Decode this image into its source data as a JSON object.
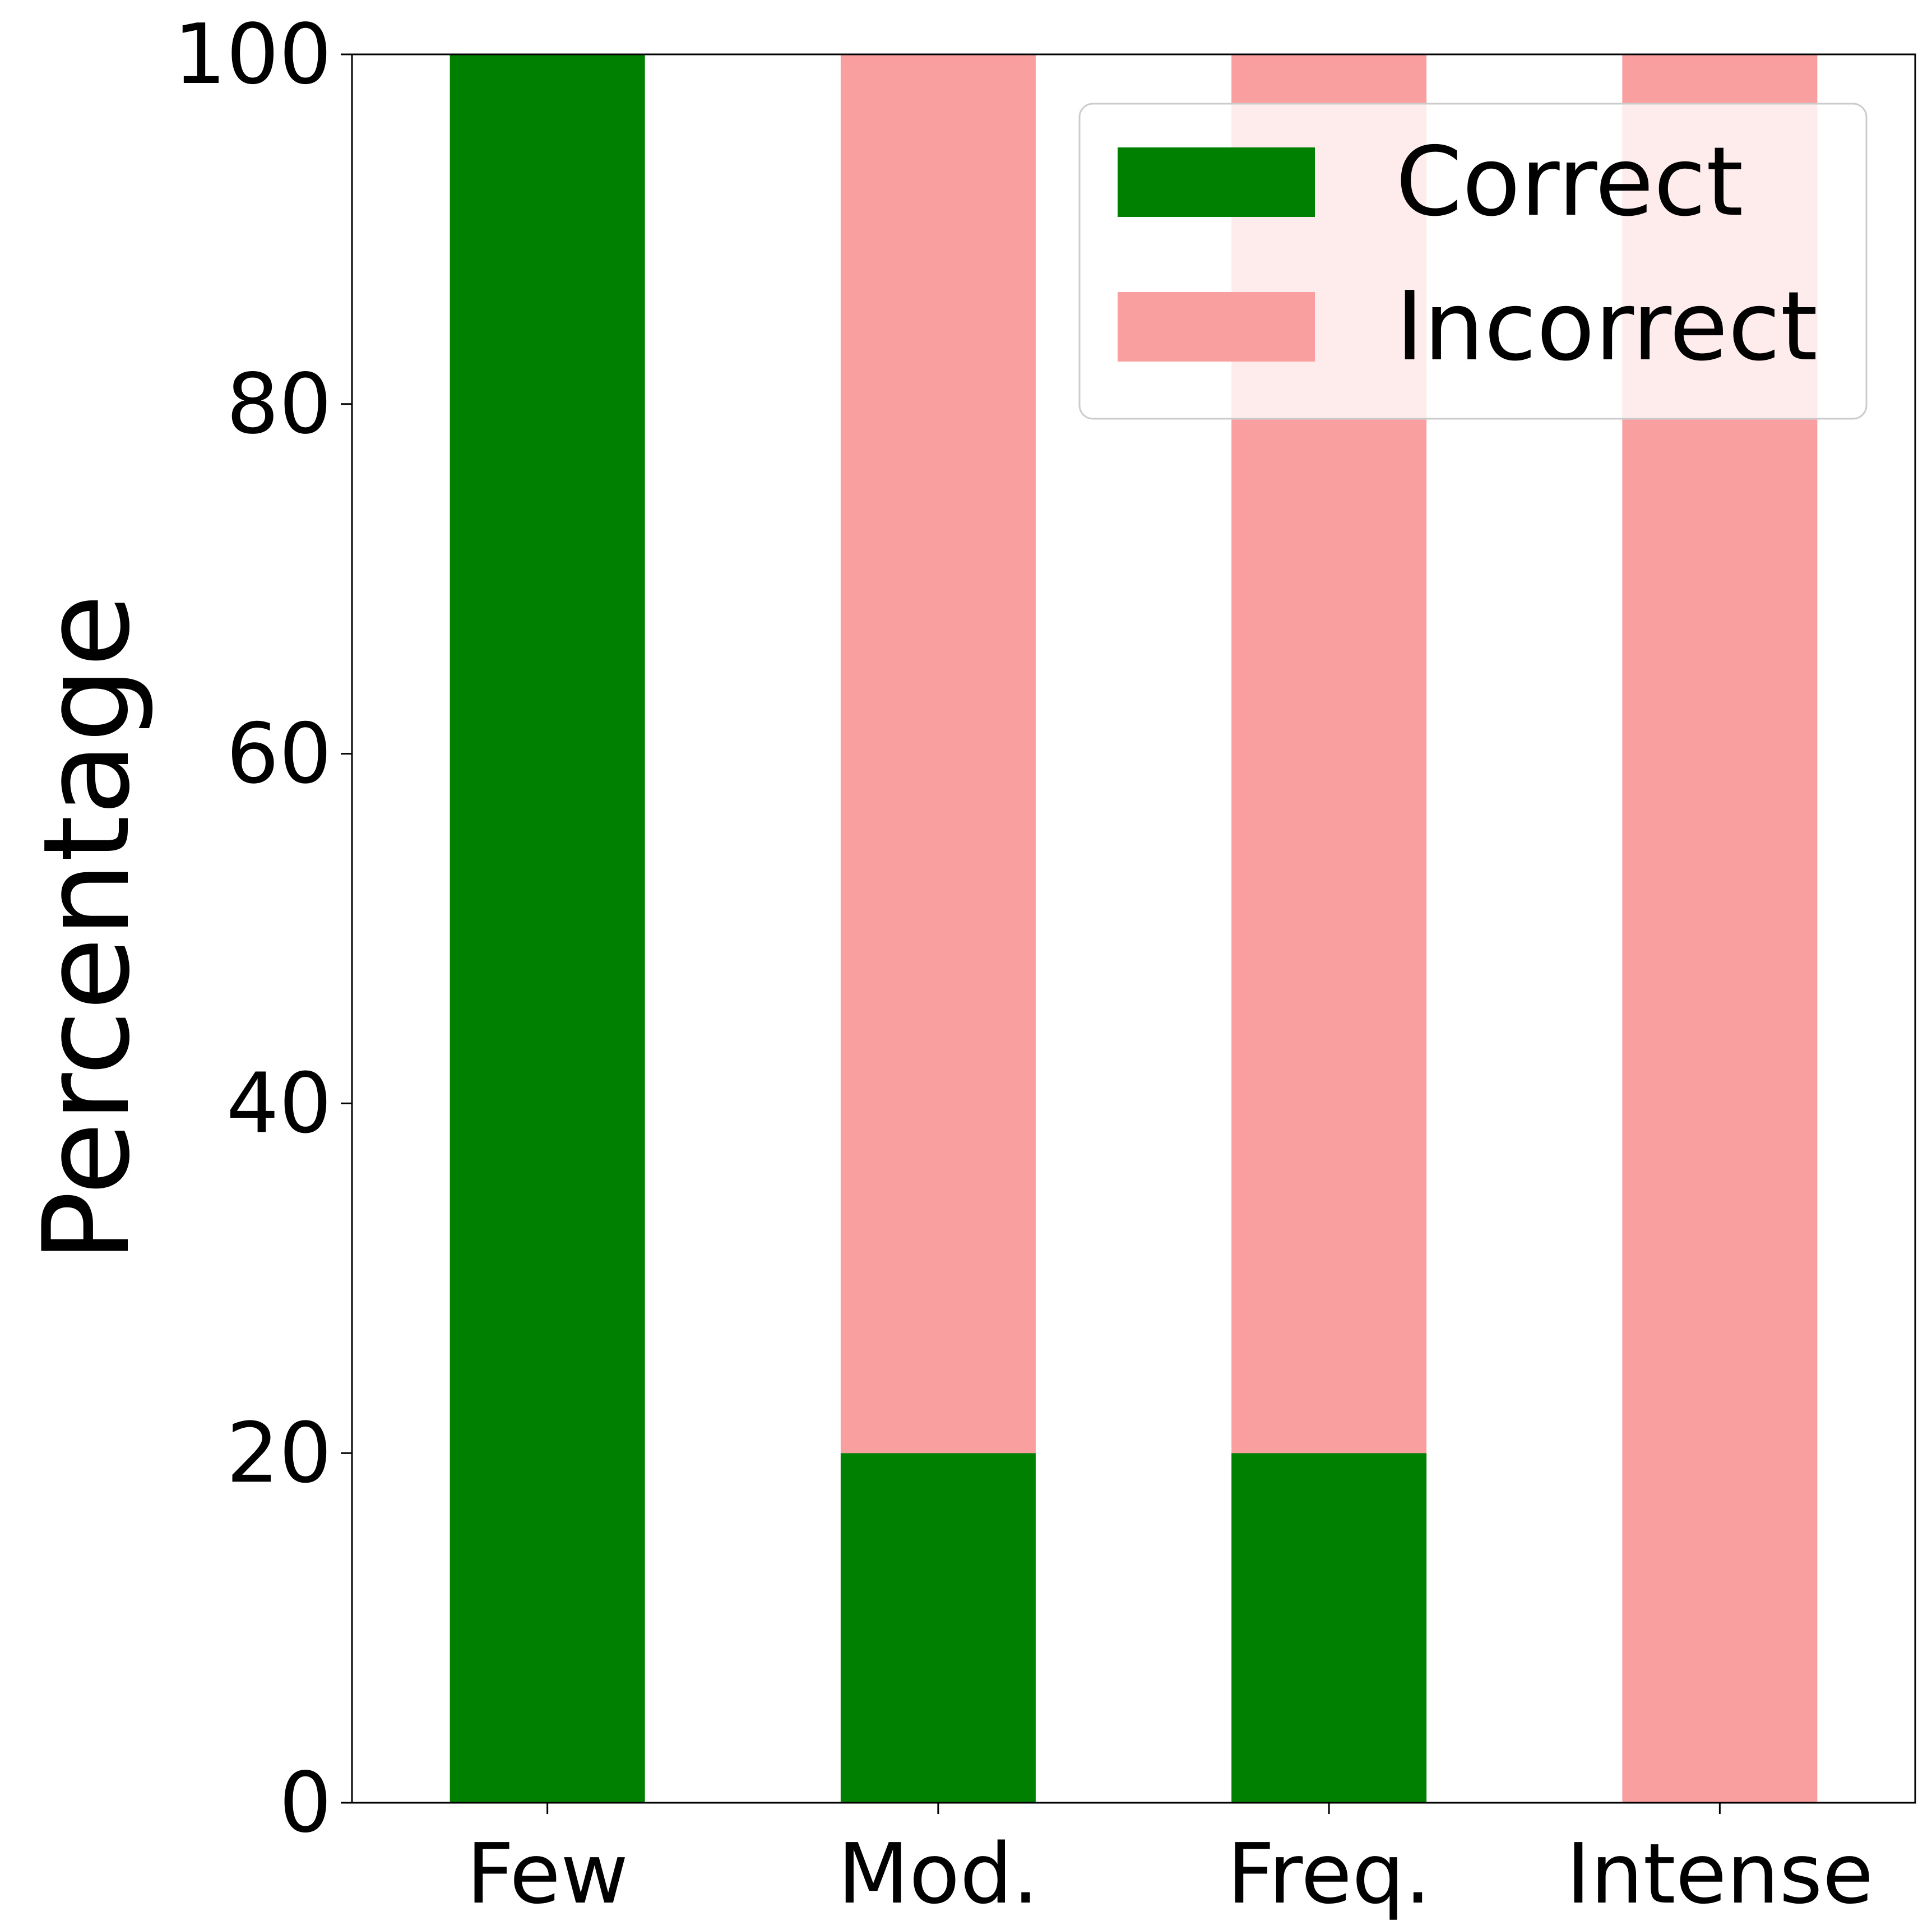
{
  "chart_data": {
    "type": "bar",
    "stacked": true,
    "categories": [
      "Few",
      "Mod.",
      "Freq.",
      "Intense"
    ],
    "series": [
      {
        "name": "Correct",
        "values": [
          100,
          20,
          20,
          0
        ],
        "color": "#008000"
      },
      {
        "name": "Incorrect",
        "values": [
          0,
          80,
          80,
          100
        ],
        "color": "#fa9fa0"
      }
    ],
    "title": "",
    "xlabel": "",
    "ylabel": "Percentage",
    "ylim": [
      0,
      100
    ],
    "yticks": [
      0,
      20,
      40,
      60,
      80,
      100
    ],
    "grid": false,
    "legend_position": "top-right"
  }
}
